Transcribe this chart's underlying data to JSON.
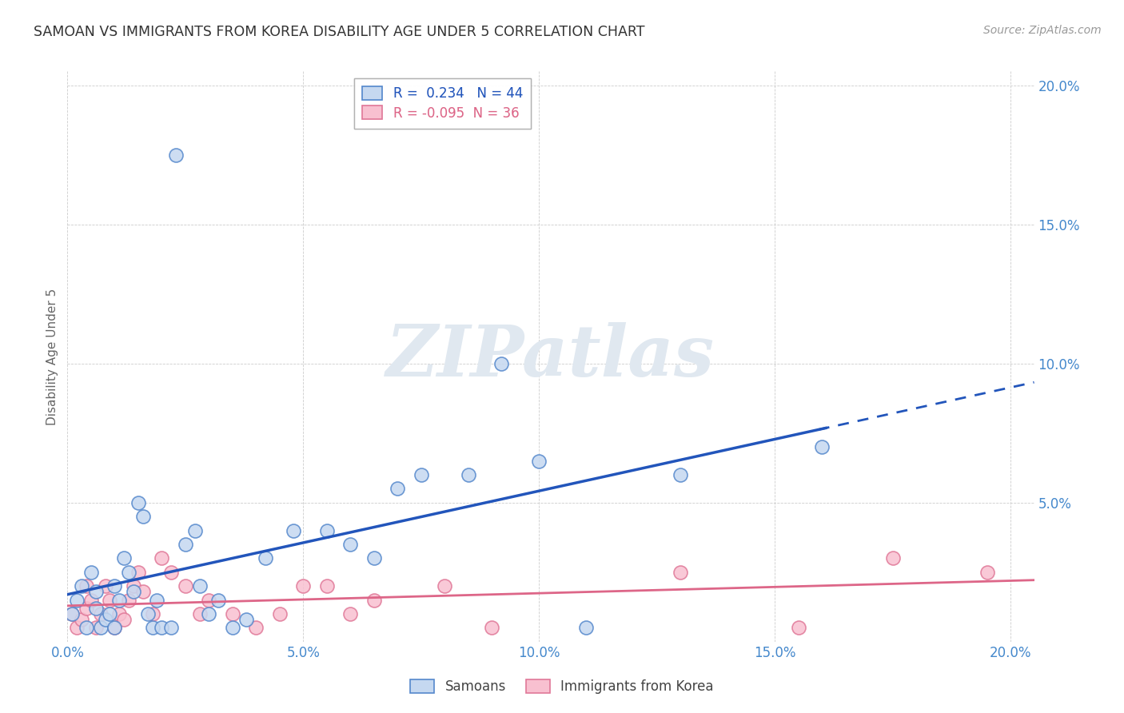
{
  "title": "SAMOAN VS IMMIGRANTS FROM KOREA DISABILITY AGE UNDER 5 CORRELATION CHART",
  "source": "Source: ZipAtlas.com",
  "ylabel": "Disability Age Under 5",
  "xlim": [
    0.0,
    0.205
  ],
  "ylim": [
    0.0,
    0.205
  ],
  "xticks": [
    0.0,
    0.05,
    0.1,
    0.15,
    0.2
  ],
  "yticks": [
    0.0,
    0.05,
    0.1,
    0.15,
    0.2
  ],
  "xticklabels": [
    "0.0%",
    "5.0%",
    "10.0%",
    "15.0%",
    "20.0%"
  ],
  "yticklabels": [
    "",
    "5.0%",
    "10.0%",
    "15.0%",
    "20.0%"
  ],
  "samoans_R": 0.234,
  "samoans_N": 44,
  "korea_R": -0.095,
  "korea_N": 36,
  "samoans_face_color": "#c5d8f0",
  "samoans_edge_color": "#5588cc",
  "korea_face_color": "#f8c0d0",
  "korea_edge_color": "#e07898",
  "samoans_line_color": "#2255bb",
  "korea_line_color": "#dd6688",
  "tick_color": "#4488cc",
  "samoans_x": [
    0.001,
    0.002,
    0.003,
    0.004,
    0.005,
    0.006,
    0.006,
    0.007,
    0.008,
    0.009,
    0.01,
    0.01,
    0.011,
    0.012,
    0.013,
    0.014,
    0.015,
    0.016,
    0.017,
    0.018,
    0.019,
    0.02,
    0.022,
    0.023,
    0.025,
    0.027,
    0.028,
    0.03,
    0.032,
    0.035,
    0.038,
    0.042,
    0.048,
    0.055,
    0.06,
    0.065,
    0.07,
    0.075,
    0.085,
    0.092,
    0.1,
    0.11,
    0.13,
    0.16
  ],
  "samoans_y": [
    0.01,
    0.015,
    0.02,
    0.005,
    0.025,
    0.012,
    0.018,
    0.005,
    0.008,
    0.01,
    0.02,
    0.005,
    0.015,
    0.03,
    0.025,
    0.018,
    0.05,
    0.045,
    0.01,
    0.005,
    0.015,
    0.005,
    0.005,
    0.175,
    0.035,
    0.04,
    0.02,
    0.01,
    0.015,
    0.005,
    0.008,
    0.03,
    0.04,
    0.04,
    0.035,
    0.03,
    0.055,
    0.06,
    0.06,
    0.1,
    0.065,
    0.005,
    0.06,
    0.07
  ],
  "korea_x": [
    0.001,
    0.002,
    0.003,
    0.004,
    0.004,
    0.005,
    0.006,
    0.007,
    0.008,
    0.009,
    0.01,
    0.011,
    0.012,
    0.013,
    0.014,
    0.015,
    0.016,
    0.018,
    0.02,
    0.022,
    0.025,
    0.028,
    0.03,
    0.035,
    0.04,
    0.045,
    0.05,
    0.055,
    0.06,
    0.065,
    0.08,
    0.09,
    0.13,
    0.155,
    0.175,
    0.195
  ],
  "korea_y": [
    0.01,
    0.005,
    0.008,
    0.012,
    0.02,
    0.015,
    0.005,
    0.01,
    0.02,
    0.015,
    0.005,
    0.01,
    0.008,
    0.015,
    0.02,
    0.025,
    0.018,
    0.01,
    0.03,
    0.025,
    0.02,
    0.01,
    0.015,
    0.01,
    0.005,
    0.01,
    0.02,
    0.02,
    0.01,
    0.015,
    0.02,
    0.005,
    0.025,
    0.005,
    0.03,
    0.025
  ]
}
